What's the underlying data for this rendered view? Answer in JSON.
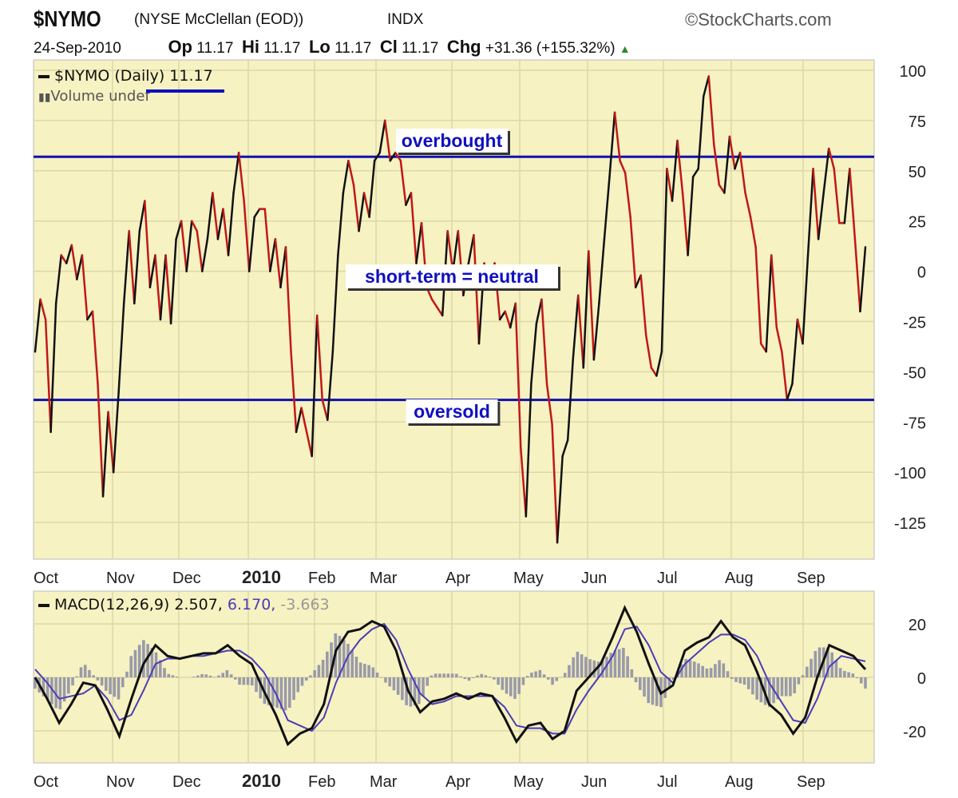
{
  "header": {
    "symbol": "$NYMO",
    "name": "(NYSE McClellan (EOD))",
    "exchange": "INDX",
    "brand": "©StockCharts.com",
    "date": "24-Sep-2010",
    "op_label": "Op",
    "op": "11.17",
    "hi_label": "Hi",
    "hi": "11.17",
    "lo_label": "Lo",
    "lo": "11.17",
    "cl_label": "Cl",
    "cl": "11.17",
    "chg_label": "Chg",
    "chg": "+31.36 (+155.32%)",
    "chg_icon": "up-triangle-icon"
  },
  "colors": {
    "panel_bg": "#f6f2c2",
    "falling": "#c01818",
    "rising": "#111111",
    "hline": "#1010b0",
    "signal": "#4a3cb8",
    "histogram": "#9a9aa8"
  },
  "chart_data": [
    {
      "type": "line",
      "legend": "$NYMO (Daily) 11.17",
      "legend2": "Volume undef",
      "x_range": [
        "2009-09-30",
        "2010-09-24"
      ],
      "x_ticks": [
        "Oct",
        "Nov",
        "Dec",
        "2010",
        "Feb",
        "Mar",
        "Apr",
        "May",
        "Jun",
        "Jul",
        "Aug",
        "Sep"
      ],
      "y_ticks": [
        "100",
        "75",
        "50",
        "25",
        "0",
        "-25",
        "-50",
        "-75",
        "-100",
        "-125"
      ],
      "ylim": [
        -140,
        105
      ],
      "grid": true,
      "values": [
        -40,
        -14,
        -24,
        -80,
        -16,
        8,
        4,
        13,
        -4,
        8,
        -24,
        -20,
        -56,
        -112,
        -70,
        -100,
        -60,
        -16,
        20,
        -16,
        20,
        35,
        -8,
        8,
        -24,
        8,
        -26,
        16,
        25,
        0,
        25,
        20,
        0,
        16,
        39,
        16,
        31,
        8,
        39,
        59,
        35,
        0,
        27,
        31,
        31,
        0,
        16,
        -8,
        12,
        -40,
        -80,
        -68,
        -80,
        -92,
        -22,
        -64,
        -74,
        -40,
        8,
        39,
        55,
        43,
        20,
        39,
        27,
        55,
        59,
        75,
        55,
        59,
        55,
        33,
        39,
        4,
        24,
        -8,
        -14,
        -18,
        -22,
        20,
        0,
        20,
        -12,
        4,
        18,
        -36,
        4,
        -4,
        4,
        -24,
        -20,
        -28,
        -16,
        -88,
        -122,
        -56,
        -26,
        -14,
        -56,
        -76,
        -135,
        -92,
        -84,
        -44,
        -12,
        -48,
        10,
        -44,
        -16,
        16,
        47,
        79,
        55,
        49,
        27,
        -8,
        -2,
        -32,
        -48,
        -52,
        -40,
        51,
        35,
        65,
        39,
        8,
        47,
        51,
        87,
        97,
        63,
        43,
        39,
        67,
        51,
        59,
        39,
        27,
        12,
        -36,
        -40,
        8,
        -28,
        -40,
        -64,
        -56,
        -24,
        -36,
        8,
        51,
        16,
        39,
        61,
        51,
        24,
        24,
        51,
        16,
        -20,
        12
      ],
      "annotations": [
        {
          "text": "overbought",
          "value": 57
        },
        {
          "text": "short-term = neutral",
          "value": -4
        },
        {
          "text": "oversold",
          "value": -64
        }
      ]
    },
    {
      "type": "line",
      "legend": "MACD(12,26,9)",
      "macd_value": "2.507,",
      "signal_value": "6.170,",
      "hist_value": "-3.663",
      "x_range": [
        "2009-09-30",
        "2010-09-24"
      ],
      "x_ticks": [
        "Oct",
        "Nov",
        "Dec",
        "2010",
        "Feb",
        "Mar",
        "Apr",
        "May",
        "Jun",
        "Jul",
        "Aug",
        "Sep"
      ],
      "y_ticks": [
        "20",
        "0",
        "-20"
      ],
      "ylim": [
        -32,
        30
      ],
      "series": [
        {
          "values": [
            0,
            -8,
            -17,
            -10,
            -2,
            -3,
            -12,
            -22,
            -8,
            5,
            12,
            8,
            7,
            8,
            9,
            9,
            12,
            8,
            5,
            -5,
            -14,
            -25,
            -21,
            -19,
            -10,
            10,
            17,
            18,
            21,
            19,
            10,
            -5,
            -13,
            -9,
            -8,
            -6,
            -8,
            -6,
            -7,
            -15,
            -24,
            -18,
            -17,
            -23,
            -20,
            -5,
            0,
            5,
            15,
            26,
            17,
            5,
            -6,
            -3,
            10,
            13,
            15,
            21,
            15,
            12,
            2,
            -10,
            -14,
            -21,
            -15,
            0,
            12,
            10,
            8,
            3
          ]
        },
        {
          "values": [
            3,
            -2,
            -8,
            -7,
            -6,
            -3,
            -8,
            -16,
            -14,
            -5,
            5,
            7,
            7,
            8,
            8,
            9,
            10,
            10,
            7,
            2,
            -6,
            -16,
            -18,
            -20,
            -15,
            -2,
            8,
            14,
            18,
            20,
            14,
            3,
            -6,
            -10,
            -9,
            -7,
            -7,
            -7,
            -7,
            -11,
            -18,
            -19,
            -19,
            -21,
            -21,
            -12,
            -5,
            1,
            8,
            18,
            19,
            12,
            2,
            -2,
            5,
            9,
            13,
            16,
            16,
            14,
            8,
            -2,
            -9,
            -16,
            -17,
            -8,
            4,
            8,
            7,
            6
          ]
        }
      ]
    }
  ]
}
